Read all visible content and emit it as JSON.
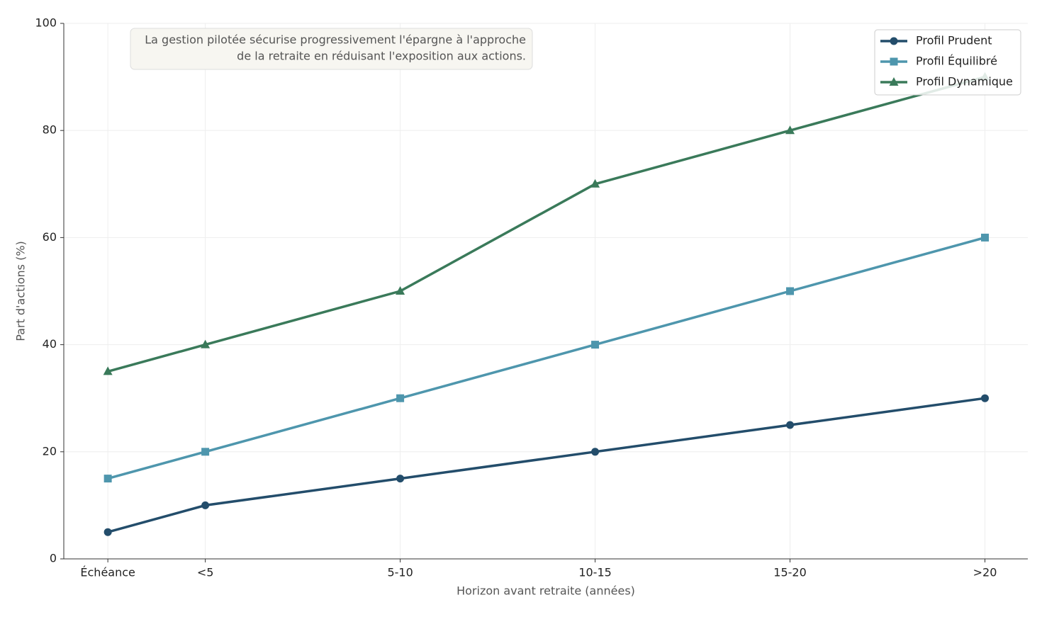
{
  "chart_data": {
    "type": "line",
    "x_label": "Horizon avant retraite (années)",
    "y_label": "Part d'actions (%)",
    "annotation": [
      "La gestion pilotée sécurise progressivement l'épargne à l'approche",
      "de la retraite en réduisant l'exposition aux actions."
    ],
    "x": [
      0,
      2.5,
      7.5,
      12.5,
      17.5,
      22.5
    ],
    "xlim": [
      -1.13,
      23.6
    ],
    "xticks": [
      {
        "value": 0,
        "label": "Échéance"
      },
      {
        "value": 2.5,
        "label": "<5"
      },
      {
        "value": 7.5,
        "label": "5-10"
      },
      {
        "value": 12.5,
        "label": "10-15"
      },
      {
        "value": 17.5,
        "label": "15-20"
      },
      {
        "value": 22.5,
        "label": ">20"
      }
    ],
    "ylim": [
      0,
      100
    ],
    "yticks": [
      0,
      20,
      40,
      60,
      80,
      100
    ],
    "grid": true,
    "legend": "upper right",
    "series": [
      {
        "name": "Profil Prudent",
        "color": "#234d6b",
        "marker": "circle",
        "values": [
          5,
          10,
          15,
          20,
          25,
          30
        ]
      },
      {
        "name": "Profil Équilibré",
        "color": "#4e96ad",
        "marker": "square",
        "values": [
          15,
          20,
          30,
          40,
          50,
          60
        ]
      },
      {
        "name": "Profil Dynamique",
        "color": "#3a7a5a",
        "marker": "triangle",
        "values": [
          35,
          40,
          50,
          70,
          80,
          90
        ]
      }
    ]
  }
}
